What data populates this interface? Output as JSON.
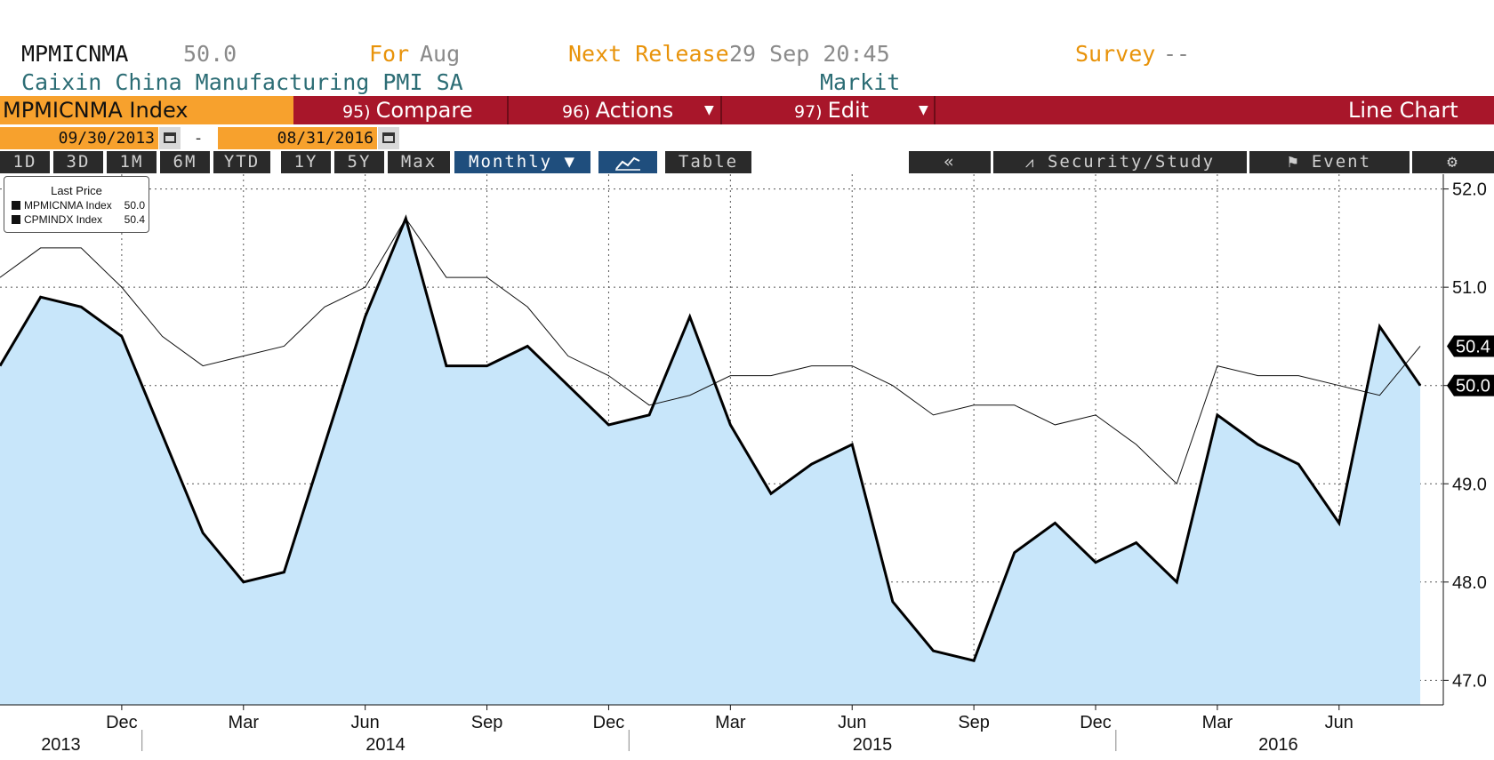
{
  "header": {
    "ticker": "MPMICNMA",
    "last_value": "50.0",
    "for_label": "For",
    "for_value": "Aug",
    "next_release_label": "Next Release",
    "next_release_value": "29 Sep 20:45",
    "survey_label": "Survey",
    "survey_value": "--",
    "description": "Caixin China Manufacturing PMI SA",
    "source": "Markit"
  },
  "toolbar": {
    "ticker_box": "MPMICNMA Index",
    "compare_num": "95)",
    "compare_label": "Compare",
    "actions_num": "96)",
    "actions_label": "Actions",
    "edit_num": "97)",
    "edit_label": "Edit",
    "chart_type": "Line Chart"
  },
  "date_range": {
    "start": "09/30/2013",
    "separator": "-",
    "end": "08/31/2016"
  },
  "periods": [
    "1D",
    "3D",
    "1M",
    "6M",
    "YTD",
    "1Y",
    "5Y",
    "Max"
  ],
  "frequency": "Monthly ▼",
  "table_button": "Table",
  "right_toolbar": {
    "collapse": "«",
    "security_study": "Security/Study",
    "event": "Event",
    "settings": "⚙"
  },
  "legend": {
    "title": "Last Price",
    "items": [
      {
        "name": "MPMICNMA Index",
        "value": "50.0"
      },
      {
        "name": "CPMINDX Index",
        "value": "50.4"
      }
    ]
  },
  "colors": {
    "command_bar": "#a8162a",
    "orange": "#f7a12d",
    "area_fill": "#c8e6fa",
    "line": "#000000"
  },
  "chart_data": {
    "type": "area",
    "x": [
      "2013-09",
      "2013-10",
      "2013-11",
      "2013-12",
      "2014-01",
      "2014-02",
      "2014-03",
      "2014-04",
      "2014-05",
      "2014-06",
      "2014-07",
      "2014-08",
      "2014-09",
      "2014-10",
      "2014-11",
      "2014-12",
      "2015-01",
      "2015-02",
      "2015-03",
      "2015-04",
      "2015-05",
      "2015-06",
      "2015-07",
      "2015-08",
      "2015-09",
      "2015-10",
      "2015-11",
      "2015-12",
      "2016-01",
      "2016-02",
      "2016-03",
      "2016-04",
      "2016-05",
      "2016-06",
      "2016-07",
      "2016-08"
    ],
    "series": [
      {
        "name": "MPMICNMA Index",
        "style": "area-bold",
        "values": [
          50.2,
          50.9,
          50.8,
          50.5,
          49.5,
          48.5,
          48.0,
          48.1,
          49.4,
          50.7,
          51.7,
          50.2,
          50.2,
          50.4,
          50.0,
          49.6,
          49.7,
          50.7,
          49.6,
          48.9,
          49.2,
          49.4,
          47.8,
          47.3,
          47.2,
          48.3,
          48.6,
          48.2,
          48.4,
          48.0,
          49.7,
          49.4,
          49.2,
          48.6,
          50.6,
          50.0
        ]
      },
      {
        "name": "CPMINDX Index",
        "style": "thin-line",
        "values": [
          51.1,
          51.4,
          51.4,
          51.0,
          50.5,
          50.2,
          50.3,
          50.4,
          50.8,
          51.0,
          51.7,
          51.1,
          51.1,
          50.8,
          50.3,
          50.1,
          49.8,
          49.9,
          50.1,
          50.1,
          50.2,
          50.2,
          50.0,
          49.7,
          49.8,
          49.8,
          49.6,
          49.7,
          49.4,
          49.0,
          50.2,
          50.1,
          50.1,
          50.0,
          49.9,
          50.4
        ]
      }
    ],
    "last_value_labels": [
      "50.4",
      "50.0"
    ],
    "ylim": [
      46.75,
      52.15
    ],
    "yticks": [
      "52.0",
      "51.0",
      "50.0",
      "49.0",
      "48.0",
      "47.0"
    ],
    "xtick_labels": [
      {
        "month": "2013-12",
        "label": "Dec"
      },
      {
        "month": "2014-03",
        "label": "Mar"
      },
      {
        "month": "2014-06",
        "label": "Jun"
      },
      {
        "month": "2014-09",
        "label": "Sep"
      },
      {
        "month": "2014-12",
        "label": "Dec"
      },
      {
        "month": "2015-03",
        "label": "Mar"
      },
      {
        "month": "2015-06",
        "label": "Jun"
      },
      {
        "month": "2015-09",
        "label": "Sep"
      },
      {
        "month": "2015-12",
        "label": "Dec"
      },
      {
        "month": "2016-03",
        "label": "Mar"
      },
      {
        "month": "2016-06",
        "label": "Jun"
      }
    ],
    "year_labels": [
      "2013",
      "2014",
      "2015",
      "2016"
    ],
    "grid": true,
    "legend_position": "top-left"
  }
}
